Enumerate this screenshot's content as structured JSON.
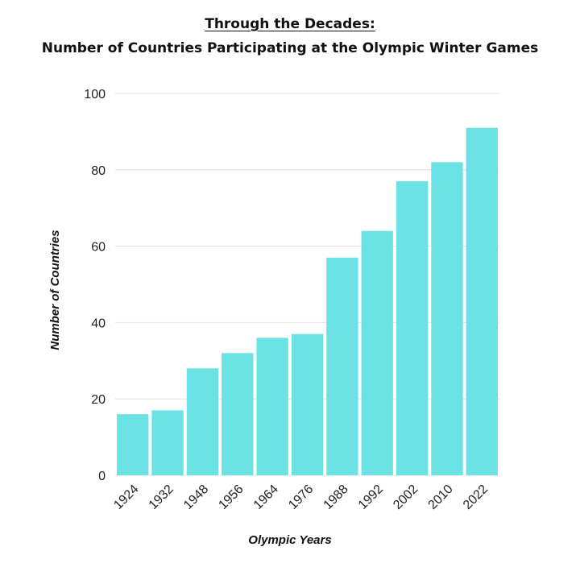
{
  "title_line1": "Through the Decades:",
  "title_line2": "Number of Countries Participating at the Olympic Winter Games",
  "colors": {
    "bar": "#6be3e5",
    "grid": "#e2e2e2",
    "text": "#222222"
  },
  "chart_data": {
    "type": "bar",
    "title": "Through the Decades: Number of Countries Participating at the Olympic Winter Games",
    "xlabel": "Olympic Years",
    "ylabel": "Number of Countries",
    "categories": [
      "1924",
      "1932",
      "1948",
      "1956",
      "1964",
      "1976",
      "1988",
      "1992",
      "2002",
      "2010",
      "2022"
    ],
    "values": [
      16,
      17,
      28,
      32,
      36,
      37,
      57,
      64,
      77,
      82,
      91
    ],
    "ylim": [
      0,
      100
    ],
    "yticks": [
      0,
      20,
      40,
      60,
      80,
      100
    ],
    "grid": true,
    "legend": "none"
  }
}
